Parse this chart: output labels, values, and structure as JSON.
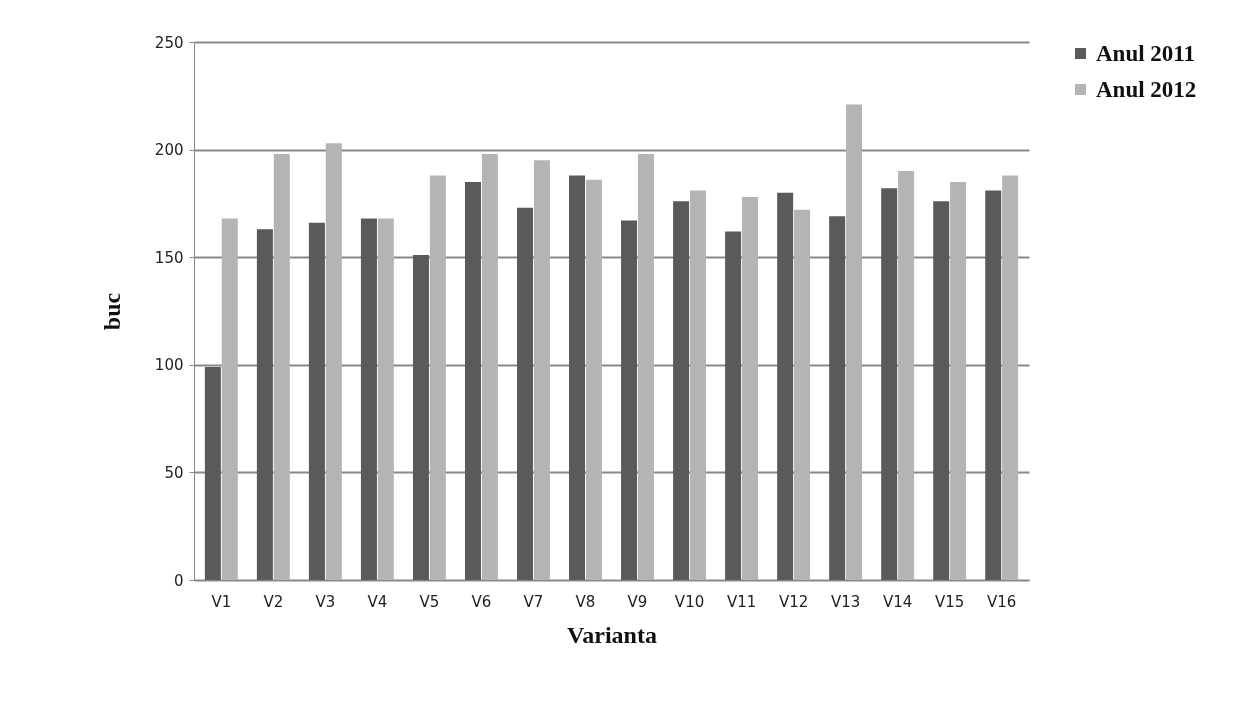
{
  "chart_data": {
    "type": "bar",
    "xlabel": "Varianta",
    "ylabel": "buc",
    "categories": [
      "V1",
      "V2",
      "V3",
      "V4",
      "V5",
      "V6",
      "V7",
      "V8",
      "V9",
      "V10",
      "V11",
      "V12",
      "V13",
      "V14",
      "V15",
      "V16"
    ],
    "series": [
      {
        "name": "Anul 2011",
        "color": "#5a5a5a",
        "values": [
          99,
          163,
          166,
          168,
          151,
          185,
          173,
          188,
          167,
          176,
          162,
          180,
          169,
          182,
          176,
          181
        ]
      },
      {
        "name": "Anul 2012",
        "color": "#b4b4b4",
        "values": [
          168,
          198,
          203,
          168,
          188,
          198,
          195,
          186,
          198,
          181,
          178,
          172,
          221,
          190,
          185,
          188
        ]
      }
    ],
    "ylim": [
      0,
      250
    ],
    "yticks": [
      0,
      50,
      100,
      150,
      200,
      250
    ],
    "grid": "y",
    "legend": "right"
  }
}
